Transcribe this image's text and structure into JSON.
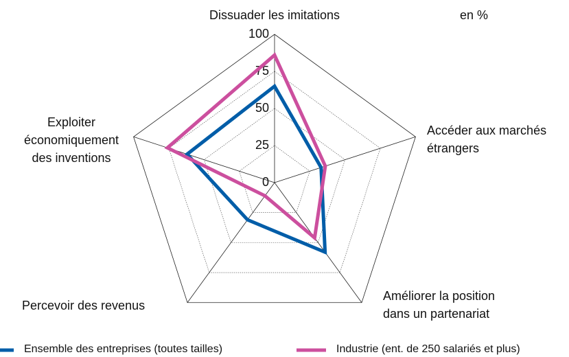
{
  "chart_data": {
    "type": "radar",
    "unit_note": "en %",
    "categories": [
      "Dissuader les imitations",
      "Accéder aux marchés étrangers",
      "Améliorer la position dans un partenariat",
      "Percevoir des revenus",
      "Exploiter économiquement des inventions"
    ],
    "series": [
      {
        "name": "Ensemble des entreprises (toutes tailles)",
        "color": "#005da8",
        "values": [
          65,
          33,
          58,
          31,
          62
        ]
      },
      {
        "name": "Industrie (ent. de 250 salariés et plus)",
        "color": "#cc4f9e",
        "values": [
          86,
          36,
          46,
          11,
          76
        ]
      }
    ],
    "rlim": [
      0,
      100
    ],
    "rticks": [
      0,
      25,
      50,
      75,
      100
    ],
    "grid": true
  }
}
